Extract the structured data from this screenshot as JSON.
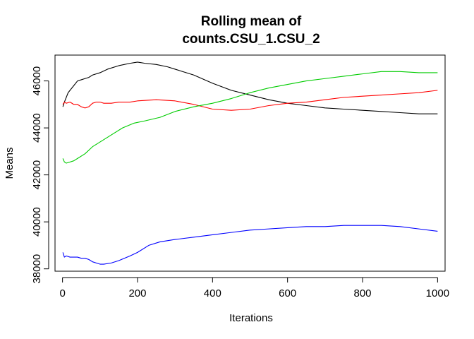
{
  "chart_data": {
    "type": "line",
    "title": [
      "Rolling mean of",
      "counts.CSU_1.CSU_2"
    ],
    "xlabel": "Iterations",
    "ylabel": "Means",
    "xlim": [
      -20,
      1020
    ],
    "ylim": [
      37900,
      47100
    ],
    "xticks": [
      0,
      200,
      400,
      600,
      800,
      1000
    ],
    "yticks": [
      38000,
      40000,
      42000,
      44000,
      46000
    ],
    "grid": false,
    "legend": "none",
    "series": [
      {
        "color": "#000000",
        "points": [
          [
            1,
            44900
          ],
          [
            5,
            45100
          ],
          [
            10,
            45300
          ],
          [
            15,
            45500
          ],
          [
            20,
            45600
          ],
          [
            30,
            45800
          ],
          [
            40,
            46000
          ],
          [
            50,
            46050
          ],
          [
            60,
            46100
          ],
          [
            70,
            46150
          ],
          [
            80,
            46250
          ],
          [
            100,
            46350
          ],
          [
            120,
            46500
          ],
          [
            150,
            46650
          ],
          [
            180,
            46750
          ],
          [
            200,
            46800
          ],
          [
            220,
            46750
          ],
          [
            250,
            46700
          ],
          [
            280,
            46600
          ],
          [
            300,
            46500
          ],
          [
            350,
            46250
          ],
          [
            400,
            45900
          ],
          [
            450,
            45600
          ],
          [
            500,
            45400
          ],
          [
            550,
            45200
          ],
          [
            600,
            45050
          ],
          [
            650,
            44950
          ],
          [
            700,
            44850
          ],
          [
            750,
            44800
          ],
          [
            800,
            44750
          ],
          [
            850,
            44700
          ],
          [
            900,
            44650
          ],
          [
            950,
            44600
          ],
          [
            1000,
            44600
          ]
        ]
      },
      {
        "color": "#ff0000",
        "points": [
          [
            1,
            45000
          ],
          [
            5,
            45100
          ],
          [
            10,
            45050
          ],
          [
            20,
            45100
          ],
          [
            30,
            45000
          ],
          [
            40,
            45000
          ],
          [
            50,
            44900
          ],
          [
            60,
            44850
          ],
          [
            70,
            44900
          ],
          [
            80,
            45050
          ],
          [
            90,
            45100
          ],
          [
            100,
            45100
          ],
          [
            110,
            45050
          ],
          [
            130,
            45050
          ],
          [
            150,
            45100
          ],
          [
            180,
            45100
          ],
          [
            200,
            45150
          ],
          [
            250,
            45200
          ],
          [
            300,
            45150
          ],
          [
            350,
            45000
          ],
          [
            400,
            44800
          ],
          [
            450,
            44750
          ],
          [
            500,
            44800
          ],
          [
            550,
            44950
          ],
          [
            600,
            45050
          ],
          [
            650,
            45100
          ],
          [
            700,
            45200
          ],
          [
            750,
            45300
          ],
          [
            800,
            45350
          ],
          [
            850,
            45400
          ],
          [
            900,
            45450
          ],
          [
            950,
            45500
          ],
          [
            1000,
            45600
          ]
        ]
      },
      {
        "color": "#00cc00",
        "points": [
          [
            1,
            42700
          ],
          [
            5,
            42550
          ],
          [
            10,
            42500
          ],
          [
            20,
            42550
          ],
          [
            30,
            42600
          ],
          [
            40,
            42700
          ],
          [
            60,
            42900
          ],
          [
            80,
            43200
          ],
          [
            100,
            43400
          ],
          [
            130,
            43700
          ],
          [
            160,
            44000
          ],
          [
            190,
            44200
          ],
          [
            220,
            44300
          ],
          [
            260,
            44450
          ],
          [
            300,
            44700
          ],
          [
            350,
            44900
          ],
          [
            400,
            45050
          ],
          [
            450,
            45250
          ],
          [
            500,
            45500
          ],
          [
            550,
            45700
          ],
          [
            600,
            45850
          ],
          [
            650,
            46000
          ],
          [
            700,
            46100
          ],
          [
            750,
            46200
          ],
          [
            800,
            46300
          ],
          [
            850,
            46400
          ],
          [
            900,
            46400
          ],
          [
            950,
            46350
          ],
          [
            1000,
            46350
          ]
        ]
      },
      {
        "color": "#0000ff",
        "points": [
          [
            1,
            38700
          ],
          [
            5,
            38500
          ],
          [
            10,
            38550
          ],
          [
            20,
            38500
          ],
          [
            30,
            38500
          ],
          [
            40,
            38500
          ],
          [
            50,
            38450
          ],
          [
            60,
            38450
          ],
          [
            70,
            38400
          ],
          [
            80,
            38300
          ],
          [
            90,
            38250
          ],
          [
            100,
            38200
          ],
          [
            110,
            38200
          ],
          [
            130,
            38250
          ],
          [
            150,
            38350
          ],
          [
            180,
            38550
          ],
          [
            200,
            38700
          ],
          [
            230,
            39000
          ],
          [
            260,
            39150
          ],
          [
            300,
            39250
          ],
          [
            350,
            39350
          ],
          [
            400,
            39450
          ],
          [
            450,
            39550
          ],
          [
            500,
            39650
          ],
          [
            550,
            39700
          ],
          [
            600,
            39750
          ],
          [
            650,
            39800
          ],
          [
            700,
            39800
          ],
          [
            750,
            39850
          ],
          [
            800,
            39850
          ],
          [
            850,
            39850
          ],
          [
            900,
            39800
          ],
          [
            950,
            39700
          ],
          [
            1000,
            39600
          ]
        ]
      }
    ]
  }
}
